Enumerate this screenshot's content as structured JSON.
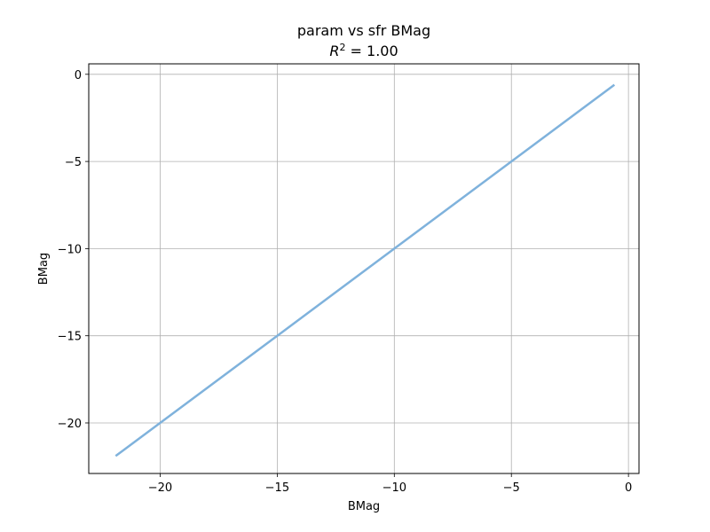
{
  "chart_data": {
    "type": "line",
    "title": "param vs sfr BMag",
    "subtitle": {
      "symbol": "R",
      "exponent": "2",
      "value": " = 1.00"
    },
    "xlabel": "BMag",
    "ylabel": "BMag",
    "xlim": [
      -23.05,
      0.45
    ],
    "ylim": [
      -22.9,
      0.6
    ],
    "xticks": [
      -20,
      -15,
      -10,
      -5,
      0
    ],
    "yticks": [
      -20,
      -15,
      -10,
      -5,
      0
    ],
    "xtick_labels": [
      "−20",
      "−15",
      "−10",
      "−5",
      "0"
    ],
    "ytick_labels": [
      "−20",
      "−15",
      "−10",
      "−5",
      "0"
    ],
    "grid": true,
    "series": [
      {
        "color": "#7fb2dc",
        "x": [
          -21.9,
          -15,
          -10,
          -5,
          -0.6
        ],
        "y": [
          -21.9,
          -15,
          -10,
          -5,
          -0.6
        ]
      }
    ]
  }
}
